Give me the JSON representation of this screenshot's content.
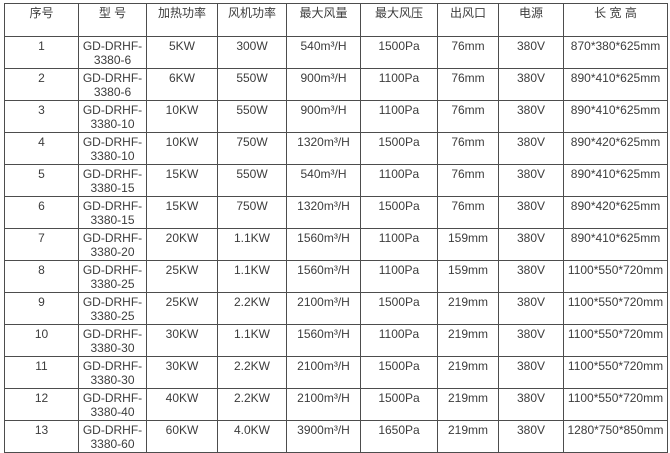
{
  "table": {
    "colors": {
      "border": "#4d4d4d",
      "text": "#3c3c3c",
      "background": "#ffffff"
    },
    "columns": [
      "序号",
      "型 号",
      "加热功率",
      "风机功率",
      "最大风量",
      "最大风压",
      "出风口",
      "电源",
      "长 宽 高"
    ],
    "rows": [
      [
        "1",
        "GD-DRHF-3380-6",
        "5KW",
        "300W",
        "540m³/H",
        "1500Pa",
        "76mm",
        "380V",
        "870*380*625mm"
      ],
      [
        "2",
        "GD-DRHF-3380-6",
        "6KW",
        "550W",
        "900m³/H",
        "1100Pa",
        "76mm",
        "380V",
        "890*410*625mm"
      ],
      [
        "3",
        "GD-DRHF-3380-10",
        "10KW",
        "550W",
        "900m³/H",
        "1100Pa",
        "76mm",
        "380V",
        "890*410*625mm"
      ],
      [
        "4",
        "GD-DRHF-3380-10",
        "10KW",
        "750W",
        "1320m³/H",
        "1500Pa",
        "76mm",
        "380V",
        "890*420*625mm"
      ],
      [
        "5",
        "GD-DRHF-3380-15",
        "15KW",
        "550W",
        "540m³/H",
        "1100Pa",
        "76mm",
        "380V",
        "890*410*625mm"
      ],
      [
        "6",
        "GD-DRHF-3380-15",
        "15KW",
        "750W",
        "1320m³/H",
        "1500Pa",
        "76mm",
        "380V",
        "890*420*625mm"
      ],
      [
        "7",
        "GD-DRHF-3380-20",
        "20KW",
        "1.1KW",
        "1560m³/H",
        "1100Pa",
        "159mm",
        "380V",
        "890*410*625mm"
      ],
      [
        "8",
        "GD-DRHF-3380-25",
        "25KW",
        "1.1KW",
        "1560m³/H",
        "1100Pa",
        "159mm",
        "380V",
        "1100*550*720mm"
      ],
      [
        "9",
        "GD-DRHF-3380-25",
        "25KW",
        "2.2KW",
        "2100m³/H",
        "1500Pa",
        "219mm",
        "380V",
        "1100*550*720mm"
      ],
      [
        "10",
        "GD-DRHF-3380-30",
        "30KW",
        "1.1KW",
        "1560m³/H",
        "1100Pa",
        "219mm",
        "380V",
        "1100*550*720mm"
      ],
      [
        "11",
        "GD-DRHF-3380-30",
        "30KW",
        "2.2KW",
        "2100m³/H",
        "1500Pa",
        "219mm",
        "380V",
        "1100*550*720mm"
      ],
      [
        "12",
        "GD-DRHF-3380-40",
        "40KW",
        "2.2KW",
        "2100m³/H",
        "1500Pa",
        "219mm",
        "380V",
        "1100*550*720mm"
      ],
      [
        "13",
        "GD-DRHF-3380-60",
        "60KW",
        "4.0KW",
        "3900m³/H",
        "1650Pa",
        "219mm",
        "380V",
        "1280*750*850mm"
      ]
    ]
  }
}
